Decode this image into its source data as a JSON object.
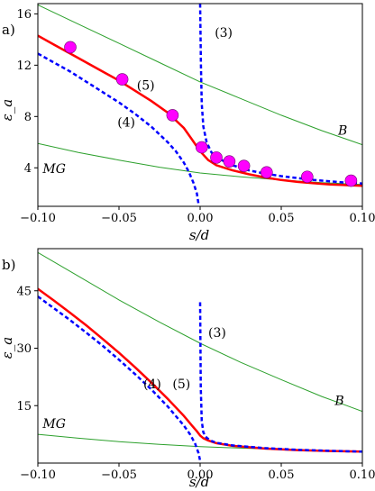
{
  "chart_data": [
    {
      "type": "line",
      "panel_label": "a)",
      "xlabel": "s/d",
      "ylabel": "ε_a",
      "xlim": [
        -0.1,
        0.1
      ],
      "ylim": [
        1.0,
        16.8
      ],
      "xticks": [
        -0.1,
        -0.05,
        0.0,
        0.05,
        0.1
      ],
      "xtick_labels": [
        "−0.10",
        "−0.05",
        "0.00",
        "0.05",
        "0.10"
      ],
      "yticks": [
        4,
        8,
        12,
        16
      ],
      "ytick_labels": [
        "4",
        "8",
        "12",
        "16"
      ],
      "grid": false,
      "colors": {
        "green": "#2ca02c",
        "red": "#ff0000",
        "blue": "#0000ff",
        "magenta": "#ff00ff"
      },
      "annotations": [
        {
          "text": "(3)",
          "x": 0.009,
          "y": 14.2
        },
        {
          "text": "(5)",
          "x": -0.039,
          "y": 10.1
        },
        {
          "text": "(4)",
          "x": -0.051,
          "y": 7.2
        },
        {
          "text": "B",
          "x": 0.085,
          "y": 6.6,
          "italic": true
        },
        {
          "text": "MG",
          "x": -0.097,
          "y": 3.6,
          "italic": true
        }
      ],
      "series": [
        {
          "key": "B",
          "style": "green-thin",
          "x": [
            -0.1,
            -0.075,
            -0.05,
            -0.025,
            0.0,
            0.025,
            0.05,
            0.075,
            0.1
          ],
          "y": [
            16.7,
            15.2,
            13.7,
            12.2,
            10.7,
            9.4,
            8.1,
            6.9,
            5.8
          ]
        },
        {
          "key": "MG",
          "style": "green-thin",
          "x": [
            -0.1,
            -0.075,
            -0.05,
            -0.025,
            0.0,
            0.025,
            0.05,
            0.075,
            0.1
          ],
          "y": [
            5.9,
            5.2,
            4.6,
            4.05,
            3.6,
            3.3,
            3.05,
            2.85,
            2.7
          ]
        },
        {
          "key": "5",
          "style": "red-thick",
          "x": [
            -0.1,
            -0.09,
            -0.08,
            -0.07,
            -0.06,
            -0.05,
            -0.04,
            -0.03,
            -0.02,
            -0.01,
            -0.005,
            0.0,
            0.005,
            0.01,
            0.02,
            0.03,
            0.04,
            0.05,
            0.06,
            0.07,
            0.08,
            0.09,
            0.1
          ],
          "y": [
            14.3,
            13.6,
            12.9,
            12.2,
            11.5,
            10.8,
            10.0,
            9.2,
            8.3,
            7.1,
            6.2,
            5.3,
            4.6,
            4.2,
            3.8,
            3.5,
            3.25,
            3.05,
            2.9,
            2.8,
            2.7,
            2.65,
            2.6
          ]
        },
        {
          "key": "4",
          "style": "blue-dashed",
          "x": [
            -0.1,
            -0.09,
            -0.08,
            -0.07,
            -0.06,
            -0.05,
            -0.04,
            -0.03,
            -0.02,
            -0.015,
            -0.01,
            -0.007,
            -0.004,
            -0.002,
            -0.001
          ],
          "y": [
            12.9,
            12.2,
            11.5,
            10.7,
            9.9,
            9.1,
            8.2,
            7.2,
            6.0,
            5.3,
            4.4,
            3.7,
            2.8,
            2.0,
            1.2
          ]
        },
        {
          "key": "3",
          "style": "blue-dashed",
          "x": [
            0.0,
            0.0005,
            0.001,
            0.002,
            0.004,
            0.007,
            0.01,
            0.02,
            0.03,
            0.04,
            0.05,
            0.06,
            0.07,
            0.08,
            0.09,
            0.1
          ],
          "y": [
            16.8,
            12.0,
            9.0,
            7.2,
            6.0,
            5.2,
            4.8,
            4.2,
            3.8,
            3.55,
            3.35,
            3.2,
            3.05,
            2.95,
            2.85,
            2.78
          ]
        },
        {
          "key": "points",
          "style": "magenta-markers",
          "x": [
            -0.08,
            -0.048,
            -0.017,
            0.001,
            0.01,
            0.018,
            0.027,
            0.041,
            0.066,
            0.093
          ],
          "y": [
            13.4,
            10.9,
            8.1,
            5.6,
            4.8,
            4.5,
            4.15,
            3.65,
            3.3,
            3.0
          ]
        }
      ]
    },
    {
      "type": "line",
      "panel_label": "b)",
      "xlabel": "s/d",
      "ylabel": "ε_a",
      "xlim": [
        -0.1,
        0.1
      ],
      "ylim": [
        0.0,
        56.0
      ],
      "xticks": [
        -0.1,
        -0.05,
        0.0,
        0.05,
        0.1
      ],
      "xtick_labels": [
        "−0.10",
        "−0.05",
        "0.00",
        "0.05",
        "0.10"
      ],
      "yticks": [
        15,
        30,
        45
      ],
      "ytick_labels": [
        "15",
        "30",
        "45"
      ],
      "grid": false,
      "colors": {
        "green": "#2ca02c",
        "red": "#ff0000",
        "blue": "#0000ff"
      },
      "annotations": [
        {
          "text": "(3)",
          "x": 0.005,
          "y": 33.0
        },
        {
          "text": "(4)",
          "x": -0.035,
          "y": 19.5
        },
        {
          "text": "(5)",
          "x": -0.017,
          "y": 19.5
        },
        {
          "text": "B",
          "x": 0.083,
          "y": 15.2,
          "italic": true
        },
        {
          "text": "MG",
          "x": -0.097,
          "y": 9.2,
          "italic": true
        }
      ],
      "series": [
        {
          "key": "B",
          "style": "green-thin",
          "x": [
            -0.1,
            -0.075,
            -0.05,
            -0.025,
            0.0,
            0.025,
            0.05,
            0.075,
            0.1
          ],
          "y": [
            55.0,
            48.8,
            42.6,
            36.8,
            31.3,
            26.3,
            21.8,
            17.4,
            13.5
          ]
        },
        {
          "key": "MG",
          "style": "green-thin",
          "x": [
            -0.1,
            -0.075,
            -0.05,
            -0.025,
            0.0,
            0.025,
            0.05,
            0.075,
            0.1
          ],
          "y": [
            7.5,
            6.5,
            5.6,
            4.9,
            4.3,
            3.9,
            3.55,
            3.3,
            3.1
          ]
        },
        {
          "key": "5",
          "style": "red-thick",
          "x": [
            -0.1,
            -0.09,
            -0.08,
            -0.07,
            -0.06,
            -0.05,
            -0.04,
            -0.03,
            -0.02,
            -0.01,
            -0.005,
            -0.002,
            0.0,
            0.002,
            0.005,
            0.01,
            0.02,
            0.04,
            0.06,
            0.08,
            0.1
          ],
          "y": [
            45.5,
            42.4,
            39.2,
            35.9,
            32.4,
            28.8,
            25.0,
            21.0,
            16.8,
            12.3,
            9.8,
            8.3,
            7.2,
            6.5,
            5.9,
            5.2,
            4.5,
            3.8,
            3.4,
            3.15,
            3.0
          ]
        },
        {
          "key": "4",
          "style": "blue-dashed",
          "x": [
            -0.1,
            -0.09,
            -0.08,
            -0.07,
            -0.06,
            -0.05,
            -0.04,
            -0.03,
            -0.02,
            -0.01,
            -0.006,
            -0.003,
            -0.001,
            0.0
          ],
          "y": [
            43.5,
            40.4,
            37.3,
            34.0,
            30.6,
            27.0,
            23.2,
            19.2,
            14.8,
            9.8,
            7.4,
            5.0,
            2.6,
            0.6
          ]
        },
        {
          "key": "3",
          "style": "blue-dashed",
          "x": [
            0.0,
            0.0004,
            0.001,
            0.002,
            0.004,
            0.007,
            0.01,
            0.02,
            0.04,
            0.06,
            0.08,
            0.1
          ],
          "y": [
            42.0,
            20.0,
            11.0,
            8.0,
            6.6,
            5.8,
            5.3,
            4.6,
            3.9,
            3.45,
            3.2,
            3.0
          ]
        }
      ]
    }
  ]
}
